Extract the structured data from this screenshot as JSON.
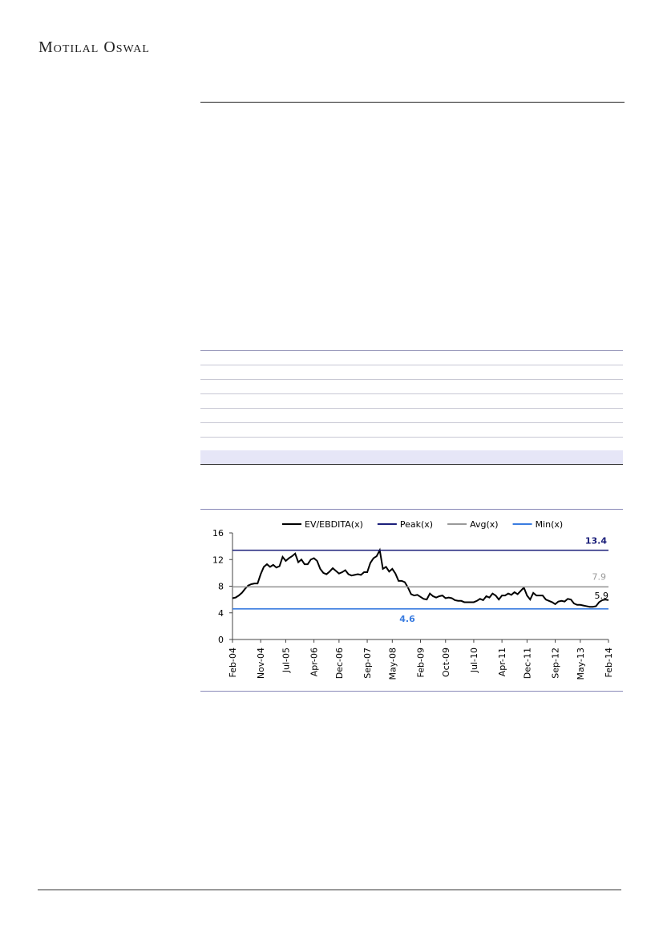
{
  "header": {
    "brand": "Motilal Oswal"
  },
  "chart_data": {
    "type": "line",
    "categories": [
      "Feb-04",
      null,
      null,
      null,
      null,
      null,
      null,
      null,
      null,
      "Nov-04",
      null,
      null,
      null,
      null,
      null,
      null,
      null,
      "Jul-05",
      null,
      null,
      null,
      null,
      null,
      null,
      null,
      null,
      "Apr-06",
      null,
      null,
      null,
      null,
      null,
      null,
      null,
      "Dec-06",
      null,
      null,
      null,
      null,
      null,
      null,
      null,
      null,
      "Sep-07",
      null,
      null,
      null,
      null,
      null,
      null,
      null,
      "May-08",
      null,
      null,
      null,
      null,
      null,
      null,
      null,
      null,
      "Feb-09",
      null,
      null,
      null,
      null,
      null,
      null,
      null,
      "Oct-09",
      null,
      null,
      null,
      null,
      null,
      null,
      null,
      null,
      "Jul-10",
      null,
      null,
      null,
      null,
      null,
      null,
      null,
      null,
      "Apr-11",
      null,
      null,
      null,
      null,
      null,
      null,
      null,
      "Dec-11",
      null,
      null,
      null,
      null,
      null,
      null,
      null,
      null,
      "Sep-12",
      null,
      null,
      null,
      null,
      null,
      null,
      null,
      "May-13",
      null,
      null,
      null,
      null,
      null,
      null,
      null,
      null,
      "Feb-14"
    ],
    "series": [
      {
        "name": "EV/EBDITA(x)",
        "color": "#000000",
        "values": [
          6.2,
          6.3,
          6.6,
          7.0,
          7.6,
          8.1,
          8.3,
          8.4,
          8.4,
          9.8,
          10.9,
          11.3,
          10.9,
          11.2,
          10.8,
          11.0,
          12.4,
          11.8,
          12.2,
          12.5,
          12.9,
          11.6,
          12.0,
          11.3,
          11.3,
          12.0,
          12.2,
          11.8,
          10.6,
          10.0,
          9.8,
          10.2,
          10.7,
          10.3,
          9.9,
          10.1,
          10.4,
          9.8,
          9.6,
          9.7,
          9.8,
          9.7,
          10.1,
          10.1,
          11.5,
          12.2,
          12.5,
          13.4,
          10.6,
          10.9,
          10.2,
          10.6,
          9.9,
          8.8,
          8.8,
          8.6,
          7.8,
          6.8,
          6.6,
          6.7,
          6.4,
          6.1,
          6.0,
          6.9,
          6.5,
          6.3,
          6.5,
          6.6,
          6.2,
          6.3,
          6.2,
          5.9,
          5.8,
          5.8,
          5.6,
          5.6,
          5.6,
          5.6,
          5.8,
          6.1,
          5.9,
          6.5,
          6.3,
          6.9,
          6.6,
          6.0,
          6.6,
          6.6,
          6.9,
          6.7,
          7.1,
          6.8,
          7.3,
          7.8,
          6.6,
          6.0,
          7.0,
          6.6,
          6.6,
          6.6,
          6.0,
          5.8,
          5.6,
          5.3,
          5.7,
          5.8,
          5.7,
          6.1,
          6.0,
          5.4,
          5.2,
          5.2,
          5.1,
          5.0,
          4.9,
          4.9,
          5.0,
          5.6,
          5.9,
          6.0,
          5.9
        ]
      },
      {
        "name": "Peak(x)",
        "color": "#1b1f7a",
        "value": 13.4
      },
      {
        "name": "Avg(x)",
        "color": "#9a9a9a",
        "value": 7.9
      },
      {
        "name": "Min(x)",
        "color": "#3a7ce0",
        "value": 4.6
      }
    ],
    "ylim": [
      0,
      16
    ],
    "yticks": [
      0,
      4,
      8,
      12,
      16
    ],
    "legend": "top"
  }
}
